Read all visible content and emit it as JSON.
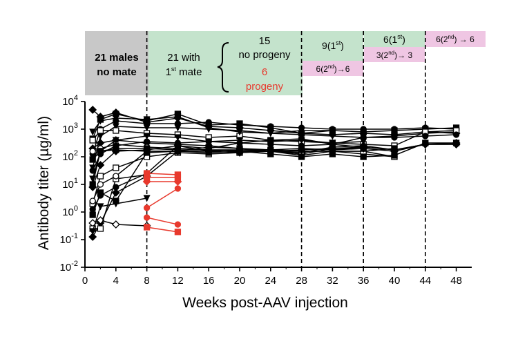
{
  "chart_data": {
    "type": "line",
    "title": "",
    "xlabel": "Weeks post-AAV injection",
    "ylabel": "Antibody titer (µg/ml)",
    "xlim": [
      0,
      50
    ],
    "ylim_log10": [
      -2,
      4
    ],
    "y_scale": "log",
    "x_ticks": [
      0,
      4,
      8,
      12,
      16,
      20,
      24,
      28,
      32,
      36,
      40,
      44,
      48
    ],
    "x_tick_labels": [
      "0",
      "4",
      "8",
      "12",
      "16",
      "20",
      "24",
      "28",
      "32",
      "36",
      "40",
      "44",
      "48"
    ],
    "y_ticks": [
      {
        "base": "10",
        "exp": "4",
        "value": 4
      },
      {
        "base": "10",
        "exp": "3",
        "value": 3
      },
      {
        "base": "10",
        "exp": "2",
        "value": 2
      },
      {
        "base": "10",
        "exp": "1",
        "value": 1
      },
      {
        "base": "10",
        "exp": "0",
        "value": 0
      },
      {
        "base": "10",
        "exp": "-1",
        "value": -1
      },
      {
        "base": "10",
        "exp": "-2",
        "value": -2
      }
    ],
    "mating_weeks": [
      8,
      28,
      36,
      44
    ],
    "colors": {
      "male": "#000000",
      "progeny": "#e8392d",
      "no_mate": "#c8c8c8",
      "mate": "#c4e3cc",
      "second": "#efc6e3"
    },
    "phases": {
      "no_mate": {
        "line1": "21 males",
        "line2": "no mate"
      },
      "first_mate": {
        "line1": "21 with",
        "first_prefix": "1",
        "first_sup": "st",
        "first_suffix": " mate",
        "no_progeny_count": "15",
        "no_progeny_label": "no progeny",
        "progeny_count": "6",
        "progeny_label": "progeny"
      },
      "p28_top": {
        "prefix": "9(1",
        "sup": "st",
        "suffix": ")"
      },
      "p28_bottom": {
        "prefix": "6(2",
        "sup": "nd",
        "suffix": ")→6"
      },
      "p36_top": {
        "prefix": "6(1",
        "sup": "st",
        "suffix": ")"
      },
      "p36_bottom": {
        "prefix": "3(2",
        "sup": "nd",
        "suffix": ")→ 3"
      },
      "p44": {
        "prefix": "6(2",
        "sup": "nd",
        "suffix": ") → 6"
      }
    },
    "series": [
      {
        "group": "male",
        "marker": "diamond",
        "points": [
          [
            1,
            3.7
          ],
          [
            2,
            3.45
          ],
          [
            4,
            3.6
          ],
          [
            8,
            3.25
          ],
          [
            12,
            3.4
          ],
          [
            16,
            3.1
          ],
          [
            20,
            3.05
          ],
          [
            24,
            2.95
          ],
          [
            28,
            2.85
          ],
          [
            32,
            2.8
          ],
          [
            36,
            2.85
          ],
          [
            40,
            2.8
          ],
          [
            44,
            2.9
          ],
          [
            48,
            2.85
          ]
        ]
      },
      {
        "group": "male",
        "marker": "square",
        "points": [
          [
            1,
            2.65
          ],
          [
            2,
            3.35
          ],
          [
            4,
            3.55
          ],
          [
            8,
            3.3
          ],
          [
            12,
            3.55
          ],
          [
            16,
            3.15
          ],
          [
            20,
            3.2
          ],
          [
            24,
            3.05
          ],
          [
            28,
            2.85
          ],
          [
            32,
            2.95
          ],
          [
            36,
            2.9
          ],
          [
            40,
            2.95
          ],
          [
            44,
            3.0
          ],
          [
            48,
            3.05
          ]
        ]
      },
      {
        "group": "male",
        "marker": "circle",
        "points": [
          [
            1,
            2.1
          ],
          [
            2,
            3.0
          ],
          [
            4,
            3.3
          ],
          [
            8,
            3.2
          ],
          [
            12,
            3.2
          ],
          [
            16,
            3.25
          ],
          [
            20,
            3.15
          ],
          [
            24,
            3.1
          ],
          [
            28,
            3.05
          ],
          [
            32,
            3.0
          ],
          [
            36,
            3.0
          ],
          [
            40,
            3.0
          ],
          [
            44,
            3.05
          ],
          [
            48,
            3.0
          ]
        ]
      },
      {
        "group": "male",
        "marker": "tri-down",
        "points": [
          [
            1,
            1.6
          ],
          [
            2,
            2.75
          ],
          [
            4,
            3.1
          ],
          [
            8,
            3.05
          ],
          [
            12,
            3.05
          ],
          [
            16,
            3.0
          ],
          [
            20,
            2.95
          ],
          [
            24,
            2.85
          ],
          [
            28,
            2.8
          ],
          [
            32,
            2.75
          ],
          [
            36,
            2.7
          ],
          [
            40,
            2.75
          ],
          [
            44,
            2.85
          ],
          [
            48,
            2.9
          ]
        ]
      },
      {
        "group": "male",
        "marker": "square-open",
        "points": [
          [
            1,
            2.6
          ],
          [
            2,
            2.95
          ],
          [
            4,
            2.95
          ],
          [
            8,
            2.85
          ],
          [
            12,
            2.8
          ],
          [
            16,
            2.7
          ],
          [
            20,
            2.75
          ],
          [
            24,
            2.6
          ],
          [
            28,
            2.55
          ],
          [
            32,
            2.5
          ],
          [
            36,
            2.45
          ],
          [
            40,
            2.4
          ],
          [
            44,
            2.9
          ],
          [
            48,
            2.95
          ]
        ]
      },
      {
        "group": "male",
        "marker": "diamond",
        "points": [
          [
            1,
            2.3
          ],
          [
            2,
            2.5
          ],
          [
            4,
            2.6
          ],
          [
            8,
            2.5
          ],
          [
            12,
            2.45
          ],
          [
            16,
            2.4
          ],
          [
            20,
            2.3
          ],
          [
            24,
            2.2
          ],
          [
            28,
            2.15
          ],
          [
            32,
            2.35
          ],
          [
            36,
            2.4
          ],
          [
            40,
            2.25
          ],
          [
            44,
            2.45
          ],
          [
            48,
            2.45
          ]
        ]
      },
      {
        "group": "male",
        "marker": "circle-open",
        "points": [
          [
            1,
            2.2
          ],
          [
            2,
            2.3
          ],
          [
            4,
            2.45
          ],
          [
            8,
            2.35
          ],
          [
            12,
            2.3
          ],
          [
            16,
            2.25
          ],
          [
            20,
            2.25
          ],
          [
            24,
            2.25
          ],
          [
            28,
            2.2
          ],
          [
            32,
            2.2
          ],
          [
            36,
            2.2
          ],
          [
            40,
            2.0
          ]
        ]
      },
      {
        "group": "male",
        "marker": "square",
        "points": [
          [
            1,
            1.9
          ],
          [
            2,
            2.2
          ],
          [
            4,
            2.3
          ],
          [
            8,
            2.3
          ],
          [
            12,
            2.25
          ],
          [
            16,
            2.25
          ],
          [
            20,
            2.2
          ],
          [
            24,
            2.2
          ],
          [
            28,
            2.2
          ],
          [
            32,
            2.2
          ],
          [
            36,
            2.2
          ],
          [
            40,
            2.3
          ]
        ]
      },
      {
        "group": "male",
        "marker": "circle",
        "points": [
          [
            1,
            1.5
          ],
          [
            2,
            2.1
          ],
          [
            4,
            2.4
          ],
          [
            8,
            2.55
          ],
          [
            12,
            2.5
          ],
          [
            16,
            2.55
          ],
          [
            20,
            2.5
          ],
          [
            24,
            2.45
          ],
          [
            28,
            2.4
          ],
          [
            32,
            2.45
          ],
          [
            36,
            2.35
          ]
        ]
      },
      {
        "group": "male",
        "marker": "tri-down",
        "points": [
          [
            1,
            1.2
          ],
          [
            2,
            2.2
          ],
          [
            4,
            2.6
          ],
          [
            8,
            2.75
          ],
          [
            12,
            2.7
          ],
          [
            16,
            2.55
          ],
          [
            20,
            2.6
          ],
          [
            24,
            2.55
          ],
          [
            28,
            2.6
          ],
          [
            32,
            2.5
          ],
          [
            36,
            2.55
          ]
        ]
      },
      {
        "group": "male",
        "marker": "diamond",
        "points": [
          [
            1,
            0.9
          ],
          [
            2,
            1.7
          ],
          [
            4,
            2.2
          ],
          [
            8,
            2.25
          ],
          [
            12,
            2.4
          ],
          [
            16,
            2.2
          ],
          [
            20,
            2.25
          ],
          [
            24,
            2.2
          ],
          [
            28,
            2.1
          ],
          [
            32,
            2.3
          ],
          [
            36,
            2.35
          ],
          [
            40,
            2.25
          ],
          [
            44,
            2.45
          ],
          [
            48,
            2.45
          ]
        ]
      },
      {
        "group": "male",
        "marker": "square-open",
        "points": [
          [
            1,
            0.3
          ],
          [
            2,
            1.3
          ],
          [
            4,
            1.6
          ],
          [
            8,
            2.0
          ],
          [
            12,
            2.15
          ],
          [
            16,
            2.1
          ],
          [
            20,
            2.15
          ],
          [
            24,
            2.2
          ],
          [
            28,
            2.05
          ],
          [
            32,
            2.2
          ],
          [
            36,
            2.1
          ],
          [
            40,
            2.0
          ]
        ]
      },
      {
        "group": "male",
        "marker": "circle",
        "points": [
          [
            1,
            0.1
          ],
          [
            2,
            0.6
          ],
          [
            4,
            0.9
          ],
          [
            8,
            1.4
          ],
          [
            12,
            2.4
          ],
          [
            16,
            2.3
          ],
          [
            20,
            2.5
          ],
          [
            24,
            2.6
          ],
          [
            28,
            2.65
          ],
          [
            32,
            2.45
          ],
          [
            36,
            2.7
          ],
          [
            40,
            2.7
          ],
          [
            44,
            2.75
          ],
          [
            48,
            2.8
          ]
        ]
      },
      {
        "group": "male",
        "marker": "square",
        "points": [
          [
            1,
            -0.1
          ],
          [
            2,
            0.7
          ],
          [
            4,
            0.4
          ],
          [
            8,
            2.15
          ],
          [
            12,
            2.2
          ],
          [
            16,
            2.35
          ],
          [
            20,
            2.3
          ],
          [
            24,
            2.25
          ],
          [
            28,
            2.3
          ],
          [
            32,
            2.25
          ],
          [
            36,
            2.3
          ]
        ]
      },
      {
        "group": "male",
        "marker": "diamond",
        "points": [
          [
            1,
            -0.9
          ],
          [
            2,
            -0.4
          ],
          [
            4,
            0.7
          ],
          [
            8,
            1.3
          ],
          [
            12,
            2.2
          ],
          [
            16,
            2.2
          ],
          [
            20,
            2.15
          ],
          [
            24,
            2.2
          ],
          [
            28,
            2.25
          ],
          [
            32,
            2.3
          ],
          [
            36,
            2.3
          ],
          [
            40,
            2.2
          ],
          [
            44,
            2.45
          ],
          [
            48,
            2.5
          ]
        ]
      },
      {
        "group": "male",
        "marker": "diamond-open",
        "points": [
          [
            1,
            -0.4
          ],
          [
            2,
            -0.3
          ],
          [
            4,
            -0.45
          ],
          [
            8,
            -0.5
          ]
        ]
      },
      {
        "group": "male",
        "marker": "square-open",
        "points": [
          [
            1,
            -0.6
          ],
          [
            2,
            -0.6
          ],
          [
            4,
            1.2
          ],
          [
            8,
            1.35
          ]
        ]
      },
      {
        "group": "male",
        "marker": "tri-down",
        "points": [
          [
            1,
            -0.7
          ],
          [
            2,
            0.2
          ],
          [
            4,
            0.3
          ],
          [
            8,
            0.5
          ]
        ]
      },
      {
        "group": "male",
        "marker": "circle-open",
        "points": [
          [
            1,
            0.4
          ],
          [
            2,
            1.0
          ],
          [
            4,
            1.3
          ],
          [
            8,
            2.2
          ],
          [
            12,
            2.2
          ]
        ]
      },
      {
        "group": "male",
        "marker": "tri-down",
        "points": [
          [
            1,
            2.9
          ],
          [
            2,
            3.3
          ],
          [
            4,
            3.4
          ],
          [
            8,
            3.35
          ],
          [
            12,
            3.45
          ],
          [
            16,
            3.05
          ],
          [
            20,
            2.9
          ],
          [
            24,
            2.85
          ],
          [
            28,
            2.95
          ],
          [
            32,
            2.95
          ]
        ]
      },
      {
        "group": "male",
        "marker": "square",
        "points": [
          [
            1,
            1.0
          ],
          [
            2,
            2.2
          ],
          [
            4,
            2.25
          ],
          [
            8,
            2.2
          ],
          [
            12,
            2.2
          ],
          [
            16,
            2.15
          ],
          [
            20,
            2.2
          ],
          [
            24,
            2.1
          ],
          [
            28,
            2.0
          ],
          [
            32,
            2.1
          ],
          [
            36,
            2.0
          ],
          [
            40,
            2.05
          ],
          [
            44,
            2.5
          ],
          [
            48,
            2.5
          ]
        ]
      },
      {
        "group": "progeny",
        "marker": "square",
        "points": [
          [
            8,
            1.4
          ],
          [
            12,
            1.35
          ]
        ]
      },
      {
        "group": "progeny",
        "marker": "square",
        "points": [
          [
            8,
            1.25
          ],
          [
            12,
            1.25
          ]
        ]
      },
      {
        "group": "progeny",
        "marker": "diamond",
        "points": [
          [
            8,
            1.1
          ],
          [
            12,
            1.1
          ]
        ]
      },
      {
        "group": "progeny",
        "marker": "circle",
        "points": [
          [
            8,
            0.15
          ],
          [
            12,
            0.85
          ]
        ]
      },
      {
        "group": "progeny",
        "marker": "circle",
        "points": [
          [
            8,
            -0.2
          ],
          [
            12,
            -0.45
          ]
        ]
      },
      {
        "group": "progeny",
        "marker": "square",
        "points": [
          [
            8,
            -0.55
          ],
          [
            12,
            -0.72
          ]
        ]
      }
    ]
  }
}
